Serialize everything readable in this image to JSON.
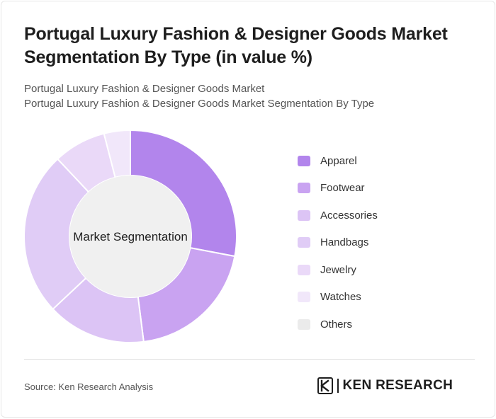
{
  "header": {
    "title": "Portugal Luxury Fashion & Designer Goods Market Segmentation By Type (in value %)",
    "subtitle_line1": "Portugal Luxury Fashion & Designer Goods Market",
    "subtitle_line2": "Portugal Luxury Fashion & Designer Goods Market Segmentation By Type"
  },
  "chart_data": {
    "type": "pie",
    "variant": "donut",
    "center_label": "Market Segmentation",
    "categories": [
      "Apparel",
      "Footwear",
      "Accessories",
      "Handbags",
      "Jewelry",
      "Watches",
      "Others"
    ],
    "values": [
      28,
      20,
      15,
      25,
      8,
      4,
      0
    ],
    "colors": [
      "#b285ec",
      "#c9a3f1",
      "#dcc4f5",
      "#e0ccf6",
      "#ead9f8",
      "#f1e7fa",
      "#ebebeb"
    ],
    "legend_position": "right"
  },
  "footer": {
    "source": "Source: Ken Research Analysis",
    "brand": "KEN RESEARCH",
    "brand_mark_icon": "ken-research-logo-icon"
  }
}
